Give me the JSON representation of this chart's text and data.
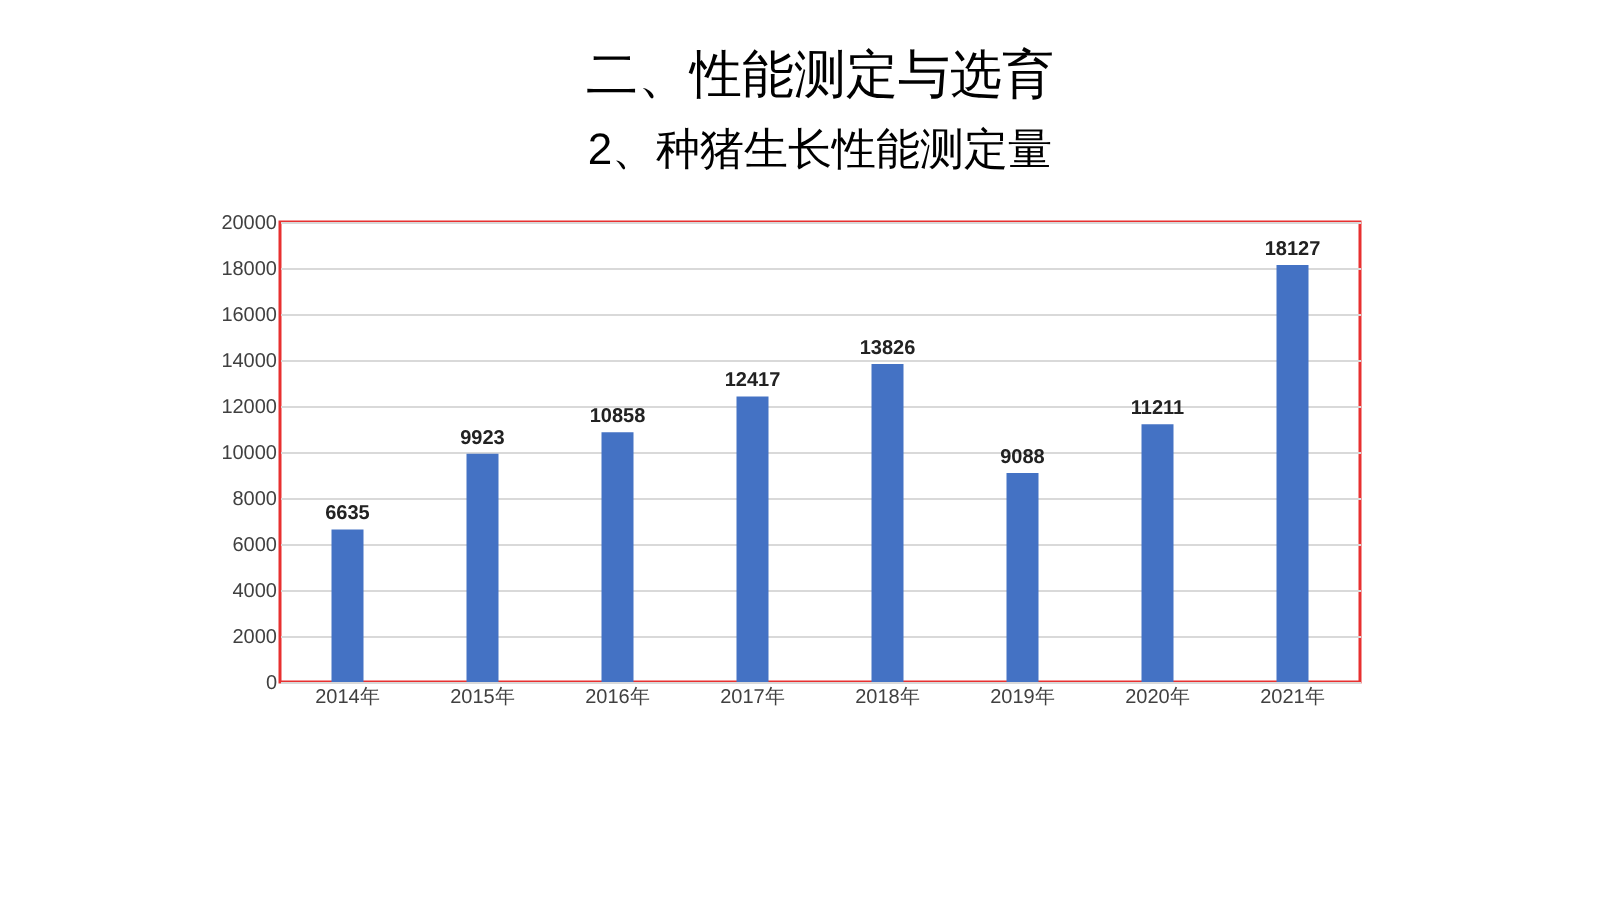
{
  "chart_data": {
    "type": "bar",
    "title": "二、性能测定与选育",
    "subtitle": "2、种猪生长性能测定量",
    "categories": [
      "2014年",
      "2015年",
      "2016年",
      "2017年",
      "2018年",
      "2019年",
      "2020年",
      "2021年"
    ],
    "values": [
      6635,
      9923,
      10858,
      12417,
      13826,
      9088,
      11211,
      18127
    ],
    "color": "#4472c4",
    "ylim": [
      0,
      20000
    ],
    "yticks": [
      0,
      2000,
      4000,
      6000,
      8000,
      10000,
      12000,
      14000,
      16000,
      18000,
      20000
    ],
    "grid": "y",
    "data_labels": true
  }
}
